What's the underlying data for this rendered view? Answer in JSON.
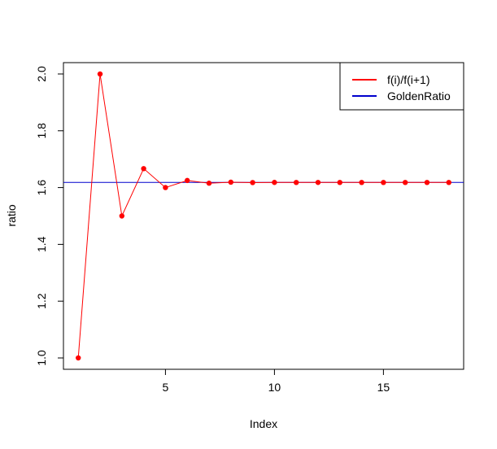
{
  "chart_data": {
    "type": "line",
    "title": "",
    "xlabel": "Index",
    "ylabel": "ratio",
    "xlim": [
      0.32,
      18.68
    ],
    "ylim": [
      0.96,
      2.04
    ],
    "x_ticks": [
      5,
      10,
      15
    ],
    "y_ticks": [
      1.0,
      1.2,
      1.4,
      1.6,
      1.8,
      2.0
    ],
    "y_tick_labels": [
      "1.0",
      "1.2",
      "1.4",
      "1.6",
      "1.8",
      "2.0"
    ],
    "x_tick_labels": [
      "5",
      "10",
      "15"
    ],
    "grid": false,
    "legend_position": "top-right",
    "series": [
      {
        "name": "f(i)/f(i+1)",
        "color": "#ff0000",
        "marker": "filled-circle",
        "x": [
          1,
          2,
          3,
          4,
          5,
          6,
          7,
          8,
          9,
          10,
          11,
          12,
          13,
          14,
          15,
          16,
          17,
          18
        ],
        "values": [
          1.0,
          2.0,
          1.5,
          1.6667,
          1.6,
          1.625,
          1.6154,
          1.619,
          1.6176,
          1.6182,
          1.618,
          1.6181,
          1.618,
          1.618,
          1.618,
          1.618,
          1.618,
          1.618
        ]
      },
      {
        "name": "GoldenRatio",
        "color": "#0000cd",
        "hline": 1.618
      }
    ]
  }
}
